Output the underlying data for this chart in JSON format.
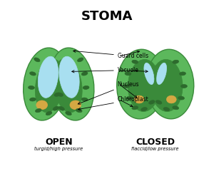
{
  "title": "STOMA",
  "title_fontsize": 13,
  "background_color": "#ffffff",
  "gc_outer": "#5cb85c",
  "gc_dark": "#3a8a3a",
  "gc_medium": "#4cae4c",
  "vacuole_color": "#a8dff0",
  "nucleus_color": "#d4a843",
  "chloroplast_color": "#2d6a2d",
  "open_label": "OPEN",
  "closed_label": "CLOSED",
  "open_sub": "turgid/high pressure",
  "closed_sub": "flaccid/low pressure",
  "label_fontsize": 5.5,
  "sub_fontsize": 4.8
}
